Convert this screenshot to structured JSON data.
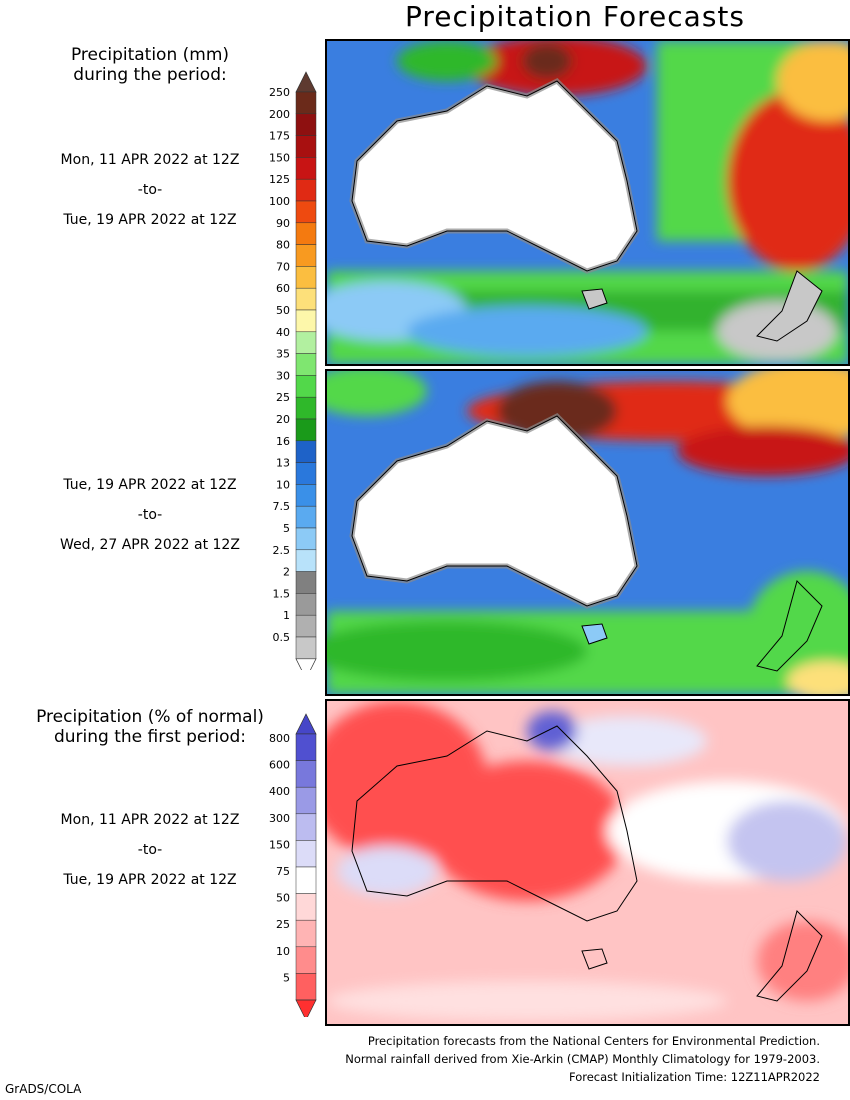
{
  "title": "Precipitation Forecasts",
  "section1": {
    "heading_line1": "Precipitation (mm)",
    "heading_line2": "during the period:",
    "period1": {
      "start": "Mon, 11 APR 2022 at 12Z",
      "sep": "-to-",
      "end": "Tue, 19 APR 2022 at 12Z"
    },
    "period2": {
      "start": "Tue, 19 APR 2022 at 12Z",
      "sep": "-to-",
      "end": "Wed, 27 APR 2022 at 12Z"
    }
  },
  "section2": {
    "heading_line1": "Precipitation (% of normal)",
    "heading_line2": "during the first period:",
    "period": {
      "start": "Mon, 11 APR 2022 at 12Z",
      "sep": "-to-",
      "end": "Tue, 19 APR 2022 at 12Z"
    }
  },
  "mm_colorbar": {
    "labels": [
      "250",
      "200",
      "175",
      "150",
      "125",
      "100",
      "90",
      "80",
      "70",
      "60",
      "50",
      "40",
      "35",
      "30",
      "25",
      "20",
      "16",
      "13",
      "10",
      "7.5",
      "5",
      "2.5",
      "2",
      "1.5",
      "1",
      "0.5"
    ],
    "colors": [
      "#6b2a1a",
      "#8e1010",
      "#a81010",
      "#c81414",
      "#e02a14",
      "#ee4a10",
      "#f47a10",
      "#f89a20",
      "#fbbe40",
      "#fde07a",
      "#fdf7aa",
      "#b2f0a0",
      "#7fe670",
      "#52d84a",
      "#2fb82a",
      "#1a9a1a",
      "#1e62c8",
      "#2a78dc",
      "#3a90e8",
      "#5aaaf0",
      "#8ccaf6",
      "#b8e2fa",
      "#808080",
      "#9a9a9a",
      "#b0b0b0",
      "#c8c8c8"
    ],
    "top_cap_color": "#5e3a30",
    "bottom_cap_color": "#ffffff"
  },
  "pct_colorbar": {
    "labels": [
      "800",
      "600",
      "400",
      "300",
      "150",
      "75",
      "50",
      "25",
      "10",
      "5"
    ],
    "colors": [
      "#5050d0",
      "#7878dc",
      "#9a9ae6",
      "#bcbcf0",
      "#dcdcf8",
      "#ffffff",
      "#ffd8d8",
      "#ffb4b4",
      "#ff8c8c",
      "#ff6060"
    ],
    "top_cap_color": "#4646c8",
    "bottom_cap_color": "#ff3030"
  },
  "footer": {
    "line1": "Precipitation forecasts from the National Centers for Environmental Prediction.",
    "line2": "Normal rainfall derived from Xie-Arkin (CMAP) Monthly Climatology for 1979-2003.",
    "line3": "Forecast Initialization Time: 12Z11APR2022"
  },
  "credit": "GrADS/COLA"
}
